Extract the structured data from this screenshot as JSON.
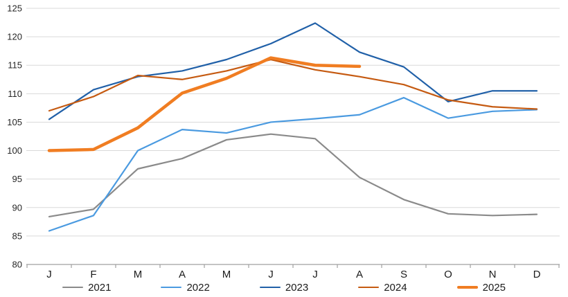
{
  "chart_data": {
    "type": "line",
    "title": "",
    "xlabel": "",
    "ylabel": "",
    "x_categories": [
      "J",
      "F",
      "M",
      "A",
      "M",
      "J",
      "J",
      "A",
      "S",
      "O",
      "N",
      "D"
    ],
    "ylim": [
      80,
      125
    ],
    "ytick_step": 5,
    "ytick_labels": [
      "80",
      "85",
      "90",
      "95",
      "100",
      "105",
      "110",
      "115",
      "120",
      "125"
    ],
    "grid": "horizontal-only",
    "legend_position": "bottom",
    "series": [
      {
        "name": "2021",
        "color": "#8a8a8a",
        "width": 2.2,
        "values": [
          88.4,
          89.7,
          96.8,
          98.6,
          101.9,
          102.9,
          102.1,
          95.3,
          91.4,
          88.9,
          88.6,
          88.8
        ]
      },
      {
        "name": "2022",
        "color": "#4a9ae0",
        "width": 2.2,
        "values": [
          85.9,
          88.6,
          100.0,
          103.7,
          103.1,
          105.0,
          105.6,
          106.3,
          109.3,
          105.7,
          106.9,
          107.2
        ]
      },
      {
        "name": "2023",
        "color": "#2060a8",
        "width": 2.2,
        "values": [
          105.5,
          110.7,
          113.0,
          114.0,
          116.0,
          118.8,
          122.4,
          117.3,
          114.7,
          108.6,
          110.5,
          110.5
        ]
      },
      {
        "name": "2024",
        "color": "#c55a11",
        "width": 2.2,
        "values": [
          107.0,
          109.5,
          113.2,
          112.5,
          114.0,
          116.0,
          114.2,
          113.0,
          111.6,
          108.9,
          107.7,
          107.3
        ]
      },
      {
        "name": "2025",
        "color": "#f07d22",
        "width": 4.5,
        "values": [
          100.0,
          100.2,
          104.0,
          110.1,
          112.7,
          116.3,
          115.0,
          114.8
        ]
      }
    ],
    "style_colors": {
      "gridline": "#d9d9d9",
      "axis": "#a0a0a0",
      "tick_text": "#262626",
      "background": "#ffffff"
    }
  }
}
